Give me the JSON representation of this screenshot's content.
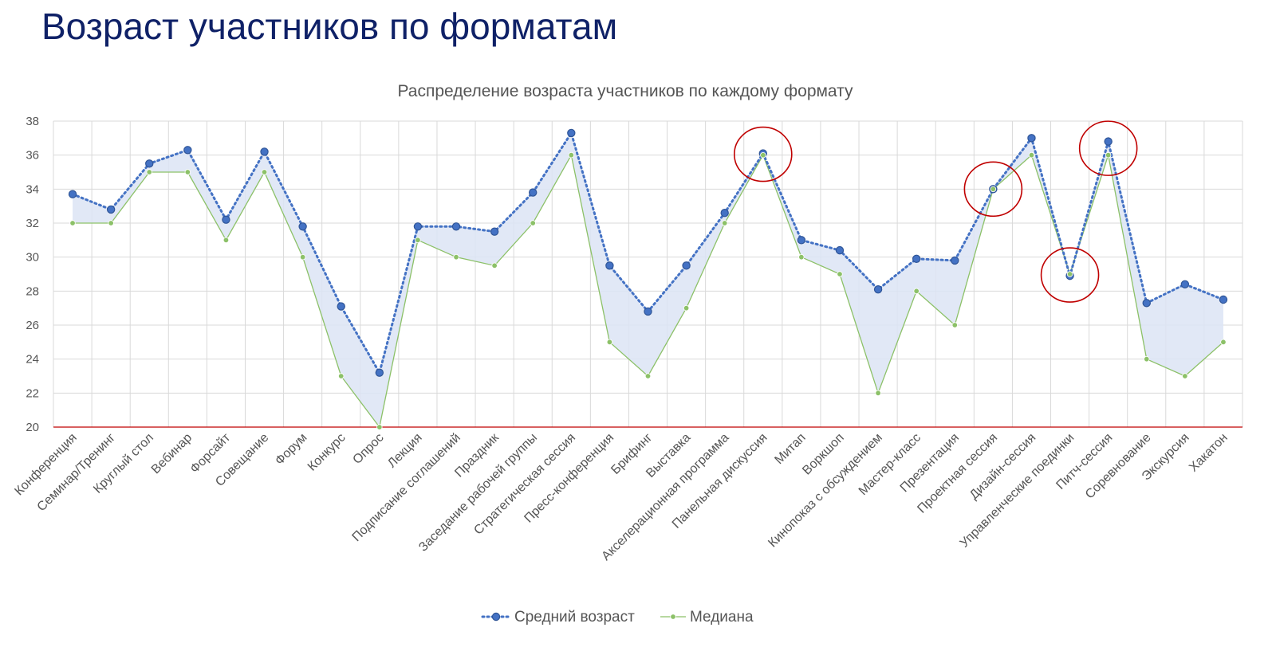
{
  "page": {
    "title": "Возраст участников по форматам"
  },
  "chart_data": {
    "type": "line",
    "title": "Распределение возраста участников по каждому формату",
    "xlabel": "",
    "ylabel": "",
    "ylim": [
      20,
      38
    ],
    "yticks": [
      20,
      22,
      24,
      26,
      28,
      30,
      32,
      34,
      36,
      38
    ],
    "grid": true,
    "legend_position": "bottom",
    "shaded_area_between_series": true,
    "categories": [
      "Конференция",
      "Семинар/Тренинг",
      "Круглый стол",
      "Вебинар",
      "Форсайт",
      "Совещание",
      "Форум",
      "Конкурс",
      "Опрос",
      "Лекция",
      "Подписание соглашений",
      "Праздник",
      "Заседание рабочей группы",
      "Стратегическая сессия",
      "Пресс-конференция",
      "Брифинг",
      "Выставка",
      "Акселерационная программа",
      "Панельная дискуссия",
      "Митап",
      "Воркшоп",
      "Кинопоказ с обсуждением",
      "Мастер-класс",
      "Презентация",
      "Проектная сессия",
      "Дизайн-сессия",
      "Управленческие поединки",
      "Питч-сессия",
      "Соревнование",
      "Экскурсия",
      "Хакатон"
    ],
    "series": [
      {
        "name": "Средний возраст",
        "color": "#4472c4",
        "style": "dotted-line-with-markers",
        "values": [
          33.7,
          32.8,
          35.5,
          36.3,
          32.2,
          36.2,
          31.8,
          27.1,
          23.2,
          31.8,
          31.8,
          31.5,
          33.8,
          37.3,
          29.5,
          26.8,
          29.5,
          32.6,
          36.1,
          31.0,
          30.4,
          28.1,
          29.9,
          29.8,
          34.0,
          37.0,
          28.9,
          36.8,
          27.3,
          28.4,
          27.5
        ]
      },
      {
        "name": "Медиана",
        "color": "#8cc168",
        "style": "solid-line-with-markers",
        "values": [
          32,
          32,
          35,
          35,
          31,
          35,
          30,
          23,
          20,
          31,
          30,
          29.5,
          32,
          36,
          25,
          23,
          27,
          32,
          36,
          30,
          29,
          22,
          28,
          26,
          34,
          36,
          29,
          36,
          24,
          23,
          25
        ]
      }
    ],
    "fill_color": "#dce4f5",
    "baseline_color": "#c00000",
    "highlight_circle_color": "#c00000",
    "highlighted_categories": [
      "Панельная дискуссия",
      "Проектная сессия",
      "Управленческие поединки",
      "Питч-сессия"
    ]
  }
}
